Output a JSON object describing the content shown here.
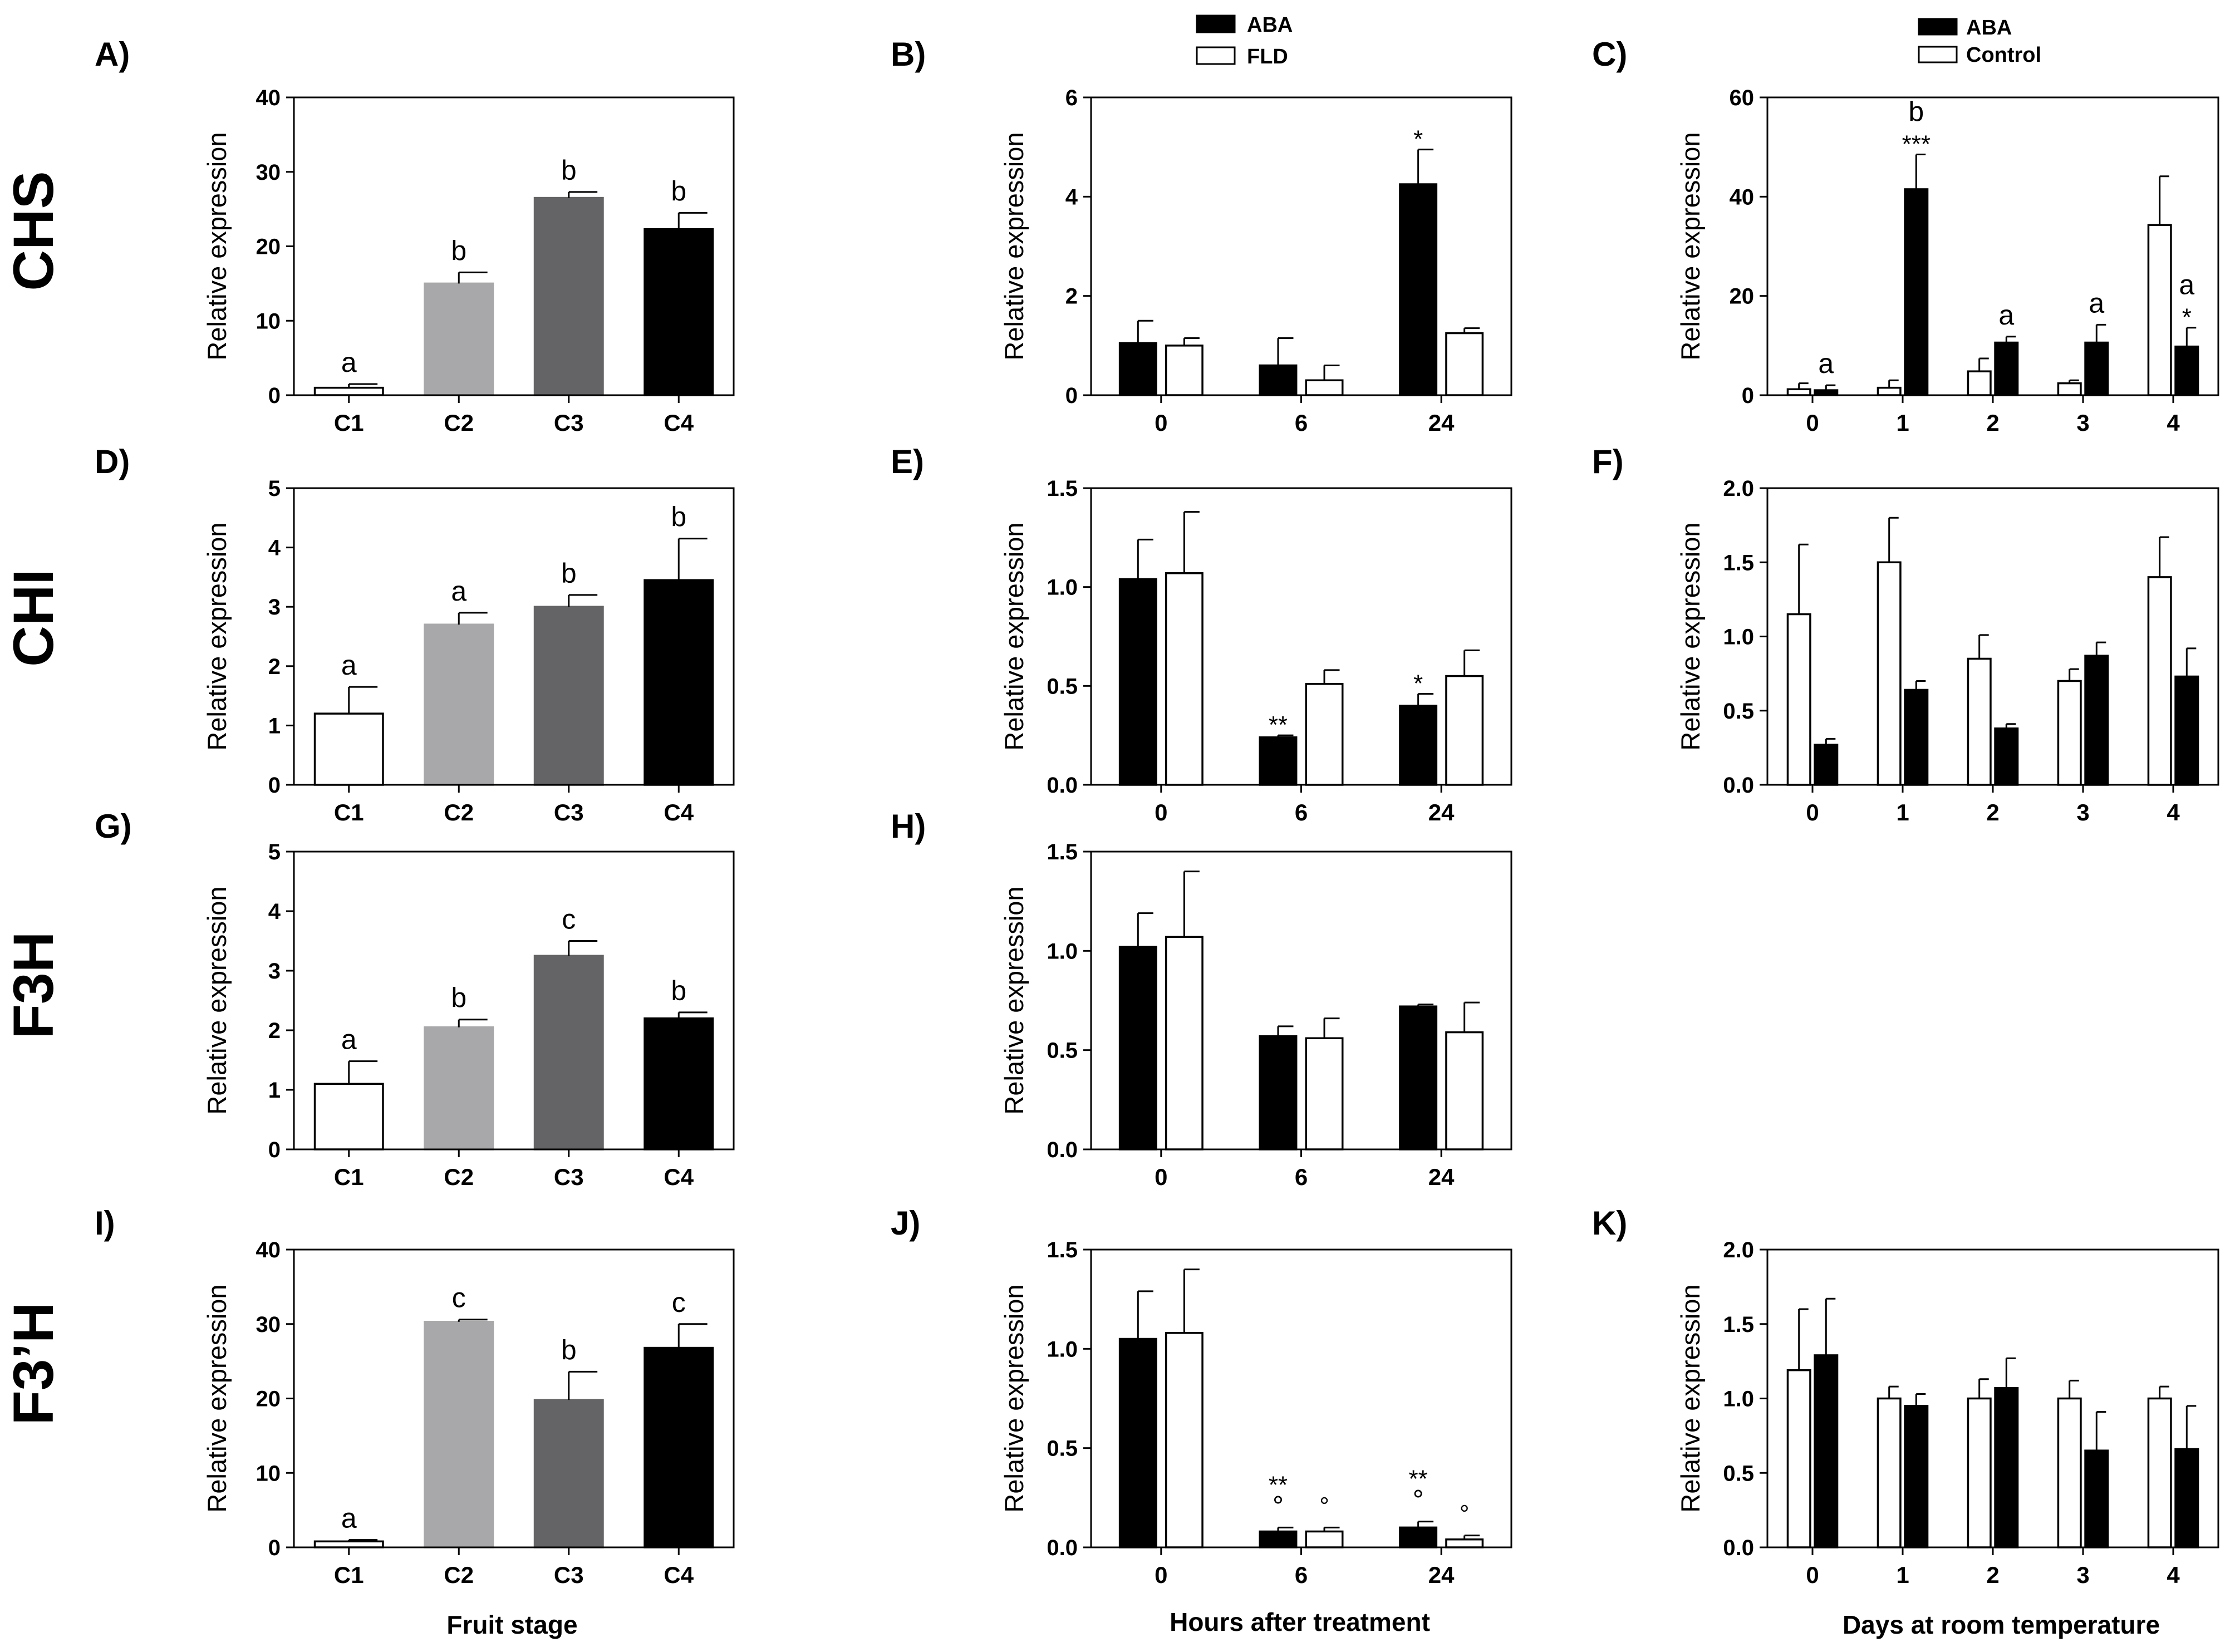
{
  "figure": {
    "rows": [
      {
        "label": "CHS"
      },
      {
        "label": "CHI"
      },
      {
        "label": "F3H"
      },
      {
        "label": "F3’H"
      }
    ],
    "xlabels": [
      "Fruit stage",
      "Hours after treatment",
      "Days at room temperature"
    ],
    "legend_b": {
      "entries": [
        "ABA",
        "FLD"
      ]
    },
    "legend_c": {
      "entries": [
        "ABA",
        "Control"
      ]
    }
  },
  "colors": {
    "c1": "#ffffff",
    "c2": "#a8a8aa",
    "c3": "#646466",
    "c4": "#000000",
    "aba": "#000000",
    "open": "#ffffff"
  },
  "chart_data": [
    {
      "id": "A",
      "panel_label": "A)",
      "type": "bar",
      "ylabel": "Relative expression",
      "categories": [
        "C1",
        "C2",
        "C3",
        "C4"
      ],
      "ylim": [
        0,
        40
      ],
      "yticks": [
        "0",
        "10",
        "20",
        "30",
        "40"
      ],
      "series": [
        {
          "name": "Fruit stage",
          "values": [
            1,
            15,
            26.5,
            22.3
          ],
          "errors": [
            0.5,
            1.5,
            0.8,
            2.2
          ]
        }
      ],
      "annotations": [
        [
          "a"
        ],
        [
          "b"
        ],
        [
          "b"
        ],
        [
          "b"
        ]
      ]
    },
    {
      "id": "B",
      "panel_label": "B)",
      "type": "bar",
      "ylabel": "Relative expression",
      "categories": [
        "0",
        "6",
        "24"
      ],
      "ylim": [
        0,
        6
      ],
      "yticks": [
        "0",
        "2",
        "4",
        "6"
      ],
      "series": [
        {
          "name": "ABA",
          "values": [
            1.05,
            0.6,
            4.25
          ],
          "errors": [
            0.45,
            0.55,
            0.7
          ]
        },
        {
          "name": "FLD",
          "values": [
            1.0,
            0.3,
            1.25
          ],
          "errors": [
            0.15,
            0.3,
            0.1
          ]
        }
      ],
      "annotations": [
        [
          ""
        ],
        [
          ""
        ],
        [
          "*"
        ]
      ]
    },
    {
      "id": "C",
      "panel_label": "C)",
      "type": "bar",
      "ylabel": "Relative expression",
      "categories": [
        "0",
        "1",
        "2",
        "3",
        "4"
      ],
      "ylim": [
        0,
        60
      ],
      "yticks": [
        "0",
        "20",
        "40",
        "60"
      ],
      "series": [
        {
          "name": "Control",
          "values": [
            1.2,
            1.5,
            4.8,
            2.4,
            34.3
          ],
          "errors": [
            1.2,
            1.5,
            2.6,
            0.6,
            9.8
          ]
        },
        {
          "name": "ABA",
          "values": [
            1.0,
            41.5,
            10.6,
            10.6,
            9.8
          ],
          "errors": [
            1.0,
            7.0,
            1.2,
            3.6,
            3.8
          ]
        }
      ],
      "annotations": [
        [
          "a"
        ],
        [
          "b",
          "***"
        ],
        [
          "a"
        ],
        [
          "a"
        ],
        [
          "a",
          "*"
        ]
      ]
    },
    {
      "id": "D",
      "panel_label": "D)",
      "type": "bar",
      "ylabel": "Relative expression",
      "categories": [
        "C1",
        "C2",
        "C3",
        "C4"
      ],
      "ylim": [
        0,
        5
      ],
      "yticks": [
        "0",
        "1",
        "2",
        "3",
        "4",
        "5"
      ],
      "series": [
        {
          "name": "Fruit stage",
          "values": [
            1.2,
            2.7,
            3.0,
            3.45
          ],
          "errors": [
            0.45,
            0.2,
            0.2,
            0.7
          ]
        }
      ],
      "annotations": [
        [
          "a"
        ],
        [
          "a"
        ],
        [
          "b"
        ],
        [
          "b"
        ]
      ]
    },
    {
      "id": "E",
      "panel_label": "E)",
      "type": "bar",
      "ylabel": "Relative expression",
      "categories": [
        "0",
        "6",
        "24"
      ],
      "ylim": [
        0,
        1.5
      ],
      "yticks": [
        "0.0",
        "0.5",
        "1.0",
        "1.5"
      ],
      "series": [
        {
          "name": "ABA",
          "values": [
            1.04,
            0.24,
            0.4
          ],
          "errors": [
            0.2,
            0.01,
            0.06
          ]
        },
        {
          "name": "FLD",
          "values": [
            1.07,
            0.51,
            0.55
          ],
          "errors": [
            0.31,
            0.07,
            0.13
          ]
        }
      ],
      "annotations": [
        [
          ""
        ],
        [
          "**"
        ],
        [
          "*"
        ]
      ]
    },
    {
      "id": "F",
      "panel_label": "F)",
      "type": "bar",
      "ylabel": "Relative expression",
      "categories": [
        "0",
        "1",
        "2",
        "3",
        "4"
      ],
      "ylim": [
        0,
        2.0
      ],
      "yticks": [
        "0.0",
        "0.5",
        "1.0",
        "1.5",
        "2.0"
      ],
      "series": [
        {
          "name": "Control",
          "values": [
            1.15,
            1.5,
            0.85,
            0.7,
            1.4
          ],
          "errors": [
            0.47,
            0.3,
            0.16,
            0.08,
            0.27
          ]
        },
        {
          "name": "ABA",
          "values": [
            0.27,
            0.64,
            0.38,
            0.87,
            0.73
          ],
          "errors": [
            0.04,
            0.06,
            0.03,
            0.09,
            0.19
          ]
        }
      ],
      "annotations": [
        [
          ""
        ],
        [
          ""
        ],
        [
          ""
        ],
        [
          ""
        ],
        [
          ""
        ]
      ]
    },
    {
      "id": "G",
      "panel_label": "G)",
      "type": "bar",
      "ylabel": "Relative expression",
      "categories": [
        "C1",
        "C2",
        "C3",
        "C4"
      ],
      "ylim": [
        0,
        5
      ],
      "yticks": [
        "0",
        "1",
        "2",
        "3",
        "4",
        "5"
      ],
      "series": [
        {
          "name": "Fruit stage",
          "values": [
            1.1,
            2.05,
            3.25,
            2.2
          ],
          "errors": [
            0.38,
            0.13,
            0.25,
            0.1
          ]
        }
      ],
      "annotations": [
        [
          "a"
        ],
        [
          "b"
        ],
        [
          "c"
        ],
        [
          "b"
        ]
      ]
    },
    {
      "id": "H",
      "panel_label": "H)",
      "type": "bar",
      "ylabel": "Relative expression",
      "categories": [
        "0",
        "6",
        "24"
      ],
      "ylim": [
        0,
        1.5
      ],
      "yticks": [
        "0.0",
        "0.5",
        "1.0",
        "1.5"
      ],
      "series": [
        {
          "name": "ABA",
          "values": [
            1.02,
            0.57,
            0.72
          ],
          "errors": [
            0.17,
            0.05,
            0.01
          ]
        },
        {
          "name": "FLD",
          "values": [
            1.07,
            0.56,
            0.59
          ],
          "errors": [
            0.33,
            0.1,
            0.15
          ]
        }
      ],
      "annotations": [
        [
          ""
        ],
        [
          ""
        ],
        [
          ""
        ]
      ]
    },
    {
      "id": "I",
      "panel_label": "I)",
      "type": "bar",
      "ylabel": "Relative expression",
      "categories": [
        "C1",
        "C2",
        "C3",
        "C4"
      ],
      "ylim": [
        0,
        40
      ],
      "yticks": [
        "0",
        "10",
        "20",
        "30",
        "40"
      ],
      "series": [
        {
          "name": "Fruit stage",
          "values": [
            0.8,
            30.3,
            19.8,
            26.8
          ],
          "errors": [
            0.2,
            0.3,
            3.8,
            3.2
          ]
        }
      ],
      "annotations": [
        [
          "a"
        ],
        [
          "c"
        ],
        [
          "b"
        ],
        [
          "c"
        ]
      ]
    },
    {
      "id": "J",
      "panel_label": "J)",
      "type": "bar",
      "ylabel": "Relative expression",
      "categories": [
        "0",
        "6",
        "24"
      ],
      "ylim": [
        0,
        1.5
      ],
      "yticks": [
        "0.0",
        "0.5",
        "1.0",
        "1.5"
      ],
      "series": [
        {
          "name": "ABA",
          "values": [
            1.05,
            0.08,
            0.1
          ],
          "errors": [
            0.24,
            0.02,
            0.03
          ]
        },
        {
          "name": "FLD",
          "values": [
            1.08,
            0.08,
            0.04
          ],
          "errors": [
            0.32,
            0.02,
            0.02
          ]
        }
      ],
      "annotations": [
        [
          ""
        ],
        [
          "**",
          "°"
        ],
        [
          "**",
          "°"
        ]
      ]
    },
    {
      "id": "K",
      "panel_label": "K)",
      "type": "bar",
      "ylabel": "Relative expression",
      "categories": [
        "0",
        "1",
        "2",
        "3",
        "4"
      ],
      "ylim": [
        0,
        2.0
      ],
      "yticks": [
        "0.0",
        "0.5",
        "1.0",
        "1.5",
        "2.0"
      ],
      "series": [
        {
          "name": "Control",
          "values": [
            1.19,
            1.0,
            1.0,
            1.0,
            1.0
          ],
          "errors": [
            0.41,
            0.08,
            0.13,
            0.12,
            0.08
          ]
        },
        {
          "name": "ABA",
          "values": [
            1.29,
            0.95,
            1.07,
            0.65,
            0.66
          ],
          "errors": [
            0.38,
            0.08,
            0.2,
            0.26,
            0.29
          ]
        }
      ],
      "annotations": [
        [
          ""
        ],
        [
          ""
        ],
        [
          ""
        ],
        [
          ""
        ],
        [
          ""
        ]
      ]
    }
  ]
}
